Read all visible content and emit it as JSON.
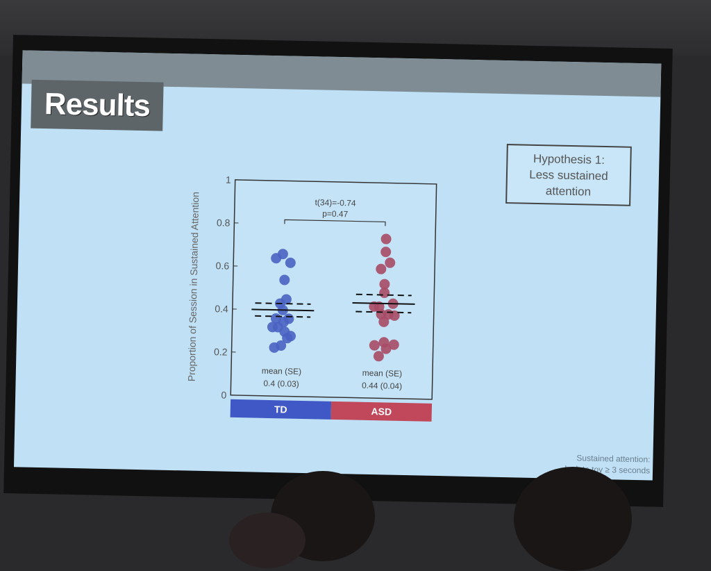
{
  "slide": {
    "title": "Results",
    "hypothesis": [
      "Hypothesis 1:",
      "Less sustained",
      "attention"
    ],
    "footnote": [
      "Sustained attention:",
      "look to toy ≥ 3 seconds"
    ]
  },
  "colors": {
    "td": "#3f58c6",
    "asd": "#c0485a",
    "td_dot": "#4a63c3",
    "asd_dot": "#a84a66"
  },
  "chart_data": {
    "type": "scatter",
    "ylabel": "Proportion of Session in Sustained Attention",
    "ylim": [
      0,
      1
    ],
    "yticks": [
      0,
      0.2,
      0.4,
      0.6,
      0.8,
      1
    ],
    "ytick_labels": [
      "0",
      "0.2",
      "0.4",
      "0.6",
      "0.8",
      "1"
    ],
    "categories": [
      "TD",
      "ASD"
    ],
    "annotation": [
      "t(34)=-0.74",
      "p=0.47"
    ],
    "series": [
      {
        "name": "TD",
        "mean": 0.4,
        "se": 0.03,
        "summary_label": "mean (SE)",
        "summary_value": "0.4 (0.03)",
        "points": [
          {
            "x": -0.14,
            "y": 0.64
          },
          {
            "x": -0.02,
            "y": 0.66
          },
          {
            "x": 0.12,
            "y": 0.62
          },
          {
            "x": 0.02,
            "y": 0.54
          },
          {
            "x": 0.06,
            "y": 0.45
          },
          {
            "x": -0.05,
            "y": 0.43
          },
          {
            "x": 0.0,
            "y": 0.4
          },
          {
            "x": -0.12,
            "y": 0.36
          },
          {
            "x": 0.11,
            "y": 0.36
          },
          {
            "x": 0.02,
            "y": 0.345
          },
          {
            "x": -0.08,
            "y": 0.32
          },
          {
            "x": -0.18,
            "y": 0.32
          },
          {
            "x": 0.04,
            "y": 0.3
          },
          {
            "x": 0.15,
            "y": 0.28
          },
          {
            "x": 0.09,
            "y": 0.27
          },
          {
            "x": -0.02,
            "y": 0.235
          },
          {
            "x": -0.14,
            "y": 0.225
          }
        ]
      },
      {
        "name": "ASD",
        "mean": 0.44,
        "se": 0.04,
        "summary_label": "mean (SE)",
        "summary_value": "0.44 (0.04)",
        "points": [
          {
            "x": 0.02,
            "y": 0.74
          },
          {
            "x": 0.02,
            "y": 0.68
          },
          {
            "x": 0.1,
            "y": 0.63
          },
          {
            "x": -0.06,
            "y": 0.6
          },
          {
            "x": 0.01,
            "y": 0.53
          },
          {
            "x": 0.01,
            "y": 0.49
          },
          {
            "x": -0.17,
            "y": 0.425
          },
          {
            "x": -0.08,
            "y": 0.425
          },
          {
            "x": 0.17,
            "y": 0.44
          },
          {
            "x": -0.04,
            "y": 0.39
          },
          {
            "x": 0.09,
            "y": 0.39
          },
          {
            "x": 0.2,
            "y": 0.385
          },
          {
            "x": 0.01,
            "y": 0.355
          },
          {
            "x": 0.02,
            "y": 0.26
          },
          {
            "x": -0.15,
            "y": 0.245
          },
          {
            "x": 0.2,
            "y": 0.25
          },
          {
            "x": 0.06,
            "y": 0.23
          },
          {
            "x": -0.07,
            "y": 0.195
          }
        ]
      }
    ]
  }
}
